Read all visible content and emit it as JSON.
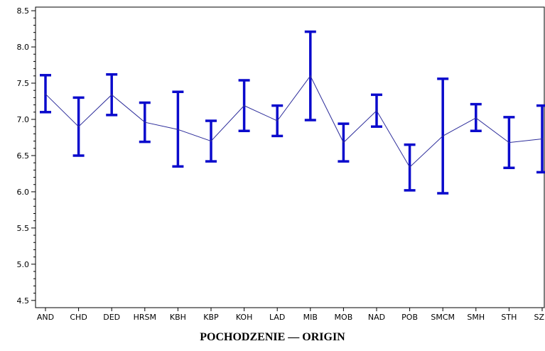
{
  "chart_data": {
    "type": "line",
    "title": "",
    "xlabel": "POCHODZENIE — ORIGIN",
    "ylabel": "",
    "ylim": [
      4.4,
      8.55
    ],
    "yticks": [
      "4.5",
      "5.0",
      "5.5",
      "6.0",
      "6.5",
      "7.0",
      "7.5",
      "8.0",
      "8.5"
    ],
    "grid": false,
    "categories": [
      "AND",
      "CHD",
      "DED",
      "HRSM",
      "KBH",
      "KBP",
      "KOH",
      "LAD",
      "MIB",
      "MOB",
      "NAD",
      "POB",
      "SMCM",
      "SMH",
      "STH",
      "SZD"
    ],
    "series": [
      {
        "mean": [
          7.35,
          6.9,
          7.34,
          6.96,
          6.86,
          6.7,
          7.19,
          6.98,
          7.6,
          6.68,
          7.12,
          6.34,
          6.77,
          7.02,
          6.68,
          6.73
        ],
        "lower": [
          7.1,
          6.5,
          7.06,
          6.69,
          6.35,
          6.42,
          6.84,
          6.77,
          6.99,
          6.42,
          6.9,
          6.02,
          5.98,
          6.84,
          6.33,
          6.27
        ],
        "upper": [
          7.61,
          7.3,
          7.62,
          7.23,
          7.38,
          6.98,
          7.54,
          7.19,
          8.21,
          6.94,
          7.34,
          6.65,
          7.56,
          7.21,
          7.03,
          7.19
        ]
      }
    ],
    "colors": {
      "mean_line": "#2b2b9a",
      "error_bar": "#0a0acc",
      "axis": "#000000"
    }
  }
}
